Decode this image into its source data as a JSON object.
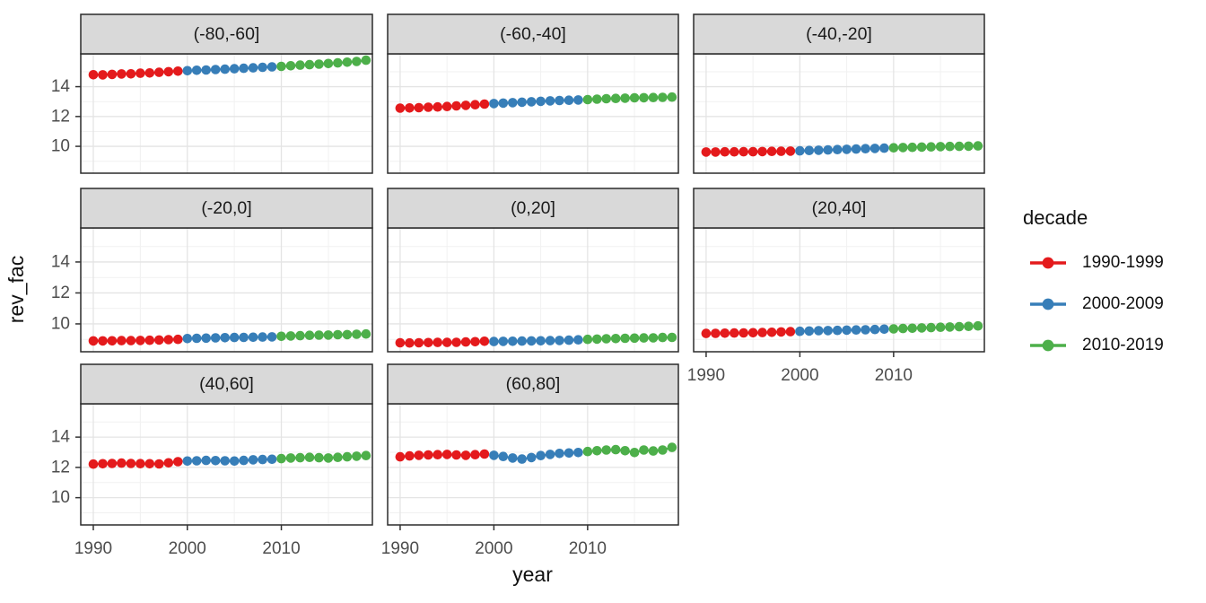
{
  "chart_data": {
    "type": "scatter",
    "title": "",
    "xlabel": "year",
    "ylabel": "rev_fac",
    "grid": "on",
    "x_ticks": [
      1990,
      2000,
      2010
    ],
    "x_minor_ticks": [
      1995,
      2005,
      2015
    ],
    "y_ticks": [
      10,
      12,
      14
    ],
    "y_minor_ticks": [
      9,
      11,
      13,
      15
    ],
    "x_range": [
      1988.7,
      2020.3
    ],
    "y_range": [
      8.2,
      16.2
    ],
    "years_start": 1990,
    "years_end": 2019,
    "legend": {
      "title": "decade",
      "position": "right",
      "entries": [
        {
          "label": "1990-1999",
          "color": "#E41A1C",
          "start_year": 1990,
          "end_year": 1999
        },
        {
          "label": "2000-2009",
          "color": "#377EB8",
          "start_year": 2000,
          "end_year": 2009
        },
        {
          "label": "2010-2019",
          "color": "#4DAF4A",
          "start_year": 2010,
          "end_year": 2019
        }
      ]
    },
    "facets": [
      {
        "label": "(-80,-60]",
        "row": 0,
        "col": 0,
        "values": [
          14.8,
          14.79,
          14.82,
          14.85,
          14.86,
          14.9,
          14.92,
          14.96,
          15.0,
          15.04,
          15.07,
          15.1,
          15.12,
          15.15,
          15.17,
          15.2,
          15.23,
          15.26,
          15.3,
          15.33,
          15.36,
          15.4,
          15.44,
          15.47,
          15.51,
          15.55,
          15.59,
          15.64,
          15.69,
          15.77
        ]
      },
      {
        "label": "(-60,-40]",
        "row": 0,
        "col": 1,
        "values": [
          12.56,
          12.57,
          12.59,
          12.62,
          12.64,
          12.67,
          12.71,
          12.75,
          12.79,
          12.83,
          12.87,
          12.9,
          12.93,
          12.96,
          12.99,
          13.02,
          13.05,
          13.07,
          13.09,
          13.11,
          13.13,
          13.16,
          13.19,
          13.21,
          13.23,
          13.25,
          13.26,
          13.27,
          13.28,
          13.3
        ]
      },
      {
        "label": "(-40,-20]",
        "row": 0,
        "col": 2,
        "values": [
          9.62,
          9.62,
          9.63,
          9.63,
          9.64,
          9.64,
          9.65,
          9.66,
          9.67,
          9.68,
          9.7,
          9.72,
          9.74,
          9.76,
          9.78,
          9.8,
          9.82,
          9.84,
          9.86,
          9.88,
          9.9,
          9.92,
          9.93,
          9.95,
          9.96,
          9.98,
          9.99,
          10.0,
          10.01,
          10.03
        ]
      },
      {
        "label": "(-20,0]",
        "row": 1,
        "col": 0,
        "values": [
          8.9,
          8.9,
          8.91,
          8.92,
          8.92,
          8.93,
          8.94,
          8.96,
          8.98,
          9.0,
          9.05,
          9.07,
          9.08,
          9.1,
          9.11,
          9.12,
          9.13,
          9.14,
          9.15,
          9.16,
          9.2,
          9.22,
          9.24,
          9.26,
          9.27,
          9.28,
          9.3,
          9.31,
          9.33,
          9.35
        ]
      },
      {
        "label": "(0,20]",
        "row": 1,
        "col": 1,
        "values": [
          8.78,
          8.77,
          8.78,
          8.79,
          8.8,
          8.8,
          8.81,
          8.83,
          8.85,
          8.88,
          8.86,
          8.87,
          8.88,
          8.89,
          8.9,
          8.91,
          8.92,
          8.93,
          8.95,
          8.97,
          9.0,
          9.02,
          9.04,
          9.05,
          9.07,
          9.08,
          9.09,
          9.1,
          9.12,
          9.13
        ]
      },
      {
        "label": "(20,40]",
        "row": 1,
        "col": 2,
        "values": [
          9.38,
          9.39,
          9.4,
          9.41,
          9.42,
          9.43,
          9.44,
          9.46,
          9.48,
          9.5,
          9.52,
          9.54,
          9.56,
          9.57,
          9.58,
          9.6,
          9.61,
          9.62,
          9.64,
          9.66,
          9.68,
          9.7,
          9.72,
          9.74,
          9.76,
          9.78,
          9.8,
          9.82,
          9.84,
          9.87
        ]
      },
      {
        "label": "(40,60]",
        "row": 2,
        "col": 0,
        "values": [
          12.22,
          12.24,
          12.26,
          12.28,
          12.26,
          12.25,
          12.24,
          12.23,
          12.3,
          12.38,
          12.42,
          12.44,
          12.46,
          12.45,
          12.44,
          12.42,
          12.46,
          12.5,
          12.52,
          12.54,
          12.58,
          12.62,
          12.64,
          12.66,
          12.64,
          12.62,
          12.66,
          12.7,
          12.74,
          12.78
        ]
      },
      {
        "label": "(60,80]",
        "row": 2,
        "col": 1,
        "values": [
          12.7,
          12.76,
          12.8,
          12.82,
          12.84,
          12.86,
          12.82,
          12.8,
          12.84,
          12.88,
          12.8,
          12.72,
          12.62,
          12.55,
          12.65,
          12.78,
          12.86,
          12.92,
          12.95,
          12.98,
          13.05,
          13.1,
          13.15,
          13.17,
          13.1,
          12.98,
          13.15,
          13.08,
          13.15,
          13.32
        ]
      }
    ],
    "style_colors": {
      "strip_fill": "#d9d9d9",
      "panel_border": "#2b2b2b",
      "grid_major": "#e4e4e4",
      "grid_minor": "#f1f1f1",
      "tick_label": "#4d4d4d",
      "tick_mark": "#333333",
      "strip_text": "#1a1a1a"
    }
  }
}
